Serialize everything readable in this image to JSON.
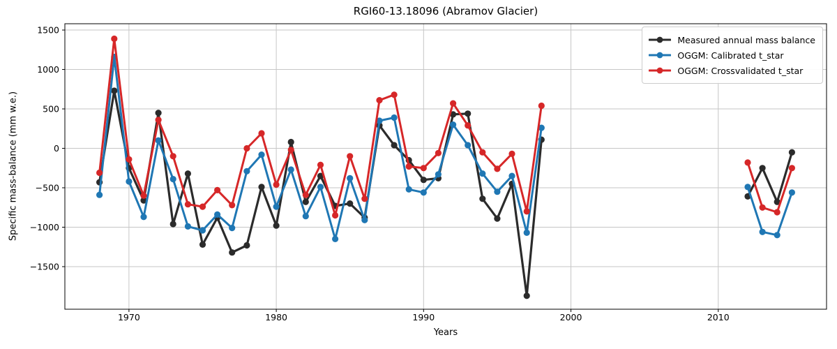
{
  "chart_data": {
    "type": "line",
    "title": "RGI60-13.18096 (Abramov Glacier)",
    "xlabel": "Years",
    "ylabel": "Specific mass-balance (mm w.e.)",
    "xlim": [
      1965.65,
      2017.35
    ],
    "ylim": [
      -2040,
      1580
    ],
    "xticks": [
      1970,
      1980,
      1990,
      2000,
      2010
    ],
    "yticks": [
      -1500,
      -1000,
      -500,
      0,
      500,
      1000,
      1500
    ],
    "grid": true,
    "legend_position": "upper right",
    "colors": {
      "measured": "#2b2b2b",
      "calibrated": "#1f77b4",
      "crossvalidated": "#d62728"
    },
    "series": [
      {
        "name": "Measured annual mass balance",
        "color": "#2b2b2b",
        "points": [
          [
            1968,
            -430
          ],
          [
            1969,
            730
          ],
          [
            1970,
            -250
          ],
          [
            1971,
            -660
          ],
          [
            1972,
            450
          ],
          [
            1973,
            -960
          ],
          [
            1974,
            -320
          ],
          [
            1975,
            -1220
          ],
          [
            1976,
            -880
          ],
          [
            1977,
            -1320
          ],
          [
            1978,
            -1230
          ],
          [
            1979,
            -490
          ],
          [
            1980,
            -980
          ],
          [
            1981,
            80
          ],
          [
            1982,
            -680
          ],
          [
            1983,
            -350
          ],
          [
            1984,
            -730
          ],
          [
            1985,
            -700
          ],
          [
            1986,
            -880
          ],
          [
            1987,
            290
          ],
          [
            1988,
            40
          ],
          [
            1989,
            -150
          ],
          [
            1990,
            -400
          ],
          [
            1991,
            -380
          ],
          [
            1992,
            430
          ],
          [
            1993,
            440
          ],
          [
            1994,
            -640
          ],
          [
            1995,
            -890
          ],
          [
            1996,
            -450
          ],
          [
            1997,
            -1870
          ],
          [
            1998,
            110
          ],
          [
            2012,
            -610
          ],
          [
            2013,
            -250
          ],
          [
            2014,
            -680
          ],
          [
            2015,
            -50
          ]
        ]
      },
      {
        "name": "OGGM: Calibrated t_star",
        "color": "#1f77b4",
        "points": [
          [
            1968,
            -590
          ],
          [
            1969,
            1160
          ],
          [
            1970,
            -420
          ],
          [
            1971,
            -870
          ],
          [
            1972,
            100
          ],
          [
            1973,
            -390
          ],
          [
            1974,
            -990
          ],
          [
            1975,
            -1040
          ],
          [
            1976,
            -840
          ],
          [
            1977,
            -1010
          ],
          [
            1978,
            -290
          ],
          [
            1979,
            -80
          ],
          [
            1980,
            -740
          ],
          [
            1981,
            -270
          ],
          [
            1982,
            -860
          ],
          [
            1983,
            -490
          ],
          [
            1984,
            -1150
          ],
          [
            1985,
            -380
          ],
          [
            1986,
            -910
          ],
          [
            1987,
            350
          ],
          [
            1988,
            390
          ],
          [
            1989,
            -520
          ],
          [
            1990,
            -560
          ],
          [
            1991,
            -330
          ],
          [
            1992,
            300
          ],
          [
            1993,
            40
          ],
          [
            1994,
            -320
          ],
          [
            1995,
            -550
          ],
          [
            1996,
            -350
          ],
          [
            1997,
            -1070
          ],
          [
            1998,
            260
          ],
          [
            2012,
            -490
          ],
          [
            2013,
            -1060
          ],
          [
            2014,
            -1100
          ],
          [
            2015,
            -560
          ]
        ]
      },
      {
        "name": "OGGM: Crossvalidated t_star",
        "color": "#d62728",
        "points": [
          [
            1968,
            -310
          ],
          [
            1969,
            1390
          ],
          [
            1970,
            -140
          ],
          [
            1971,
            -600
          ],
          [
            1972,
            360
          ],
          [
            1973,
            -100
          ],
          [
            1974,
            -710
          ],
          [
            1975,
            -740
          ],
          [
            1976,
            -530
          ],
          [
            1977,
            -720
          ],
          [
            1978,
            0
          ],
          [
            1979,
            190
          ],
          [
            1980,
            -460
          ],
          [
            1981,
            -20
          ],
          [
            1982,
            -590
          ],
          [
            1983,
            -210
          ],
          [
            1984,
            -850
          ],
          [
            1985,
            -100
          ],
          [
            1986,
            -640
          ],
          [
            1987,
            610
          ],
          [
            1988,
            680
          ],
          [
            1989,
            -230
          ],
          [
            1990,
            -250
          ],
          [
            1991,
            -60
          ],
          [
            1992,
            570
          ],
          [
            1993,
            290
          ],
          [
            1994,
            -50
          ],
          [
            1995,
            -260
          ],
          [
            1996,
            -70
          ],
          [
            1997,
            -800
          ],
          [
            1998,
            540
          ],
          [
            2012,
            -180
          ],
          [
            2013,
            -750
          ],
          [
            2014,
            -810
          ],
          [
            2015,
            -250
          ]
        ]
      }
    ]
  }
}
